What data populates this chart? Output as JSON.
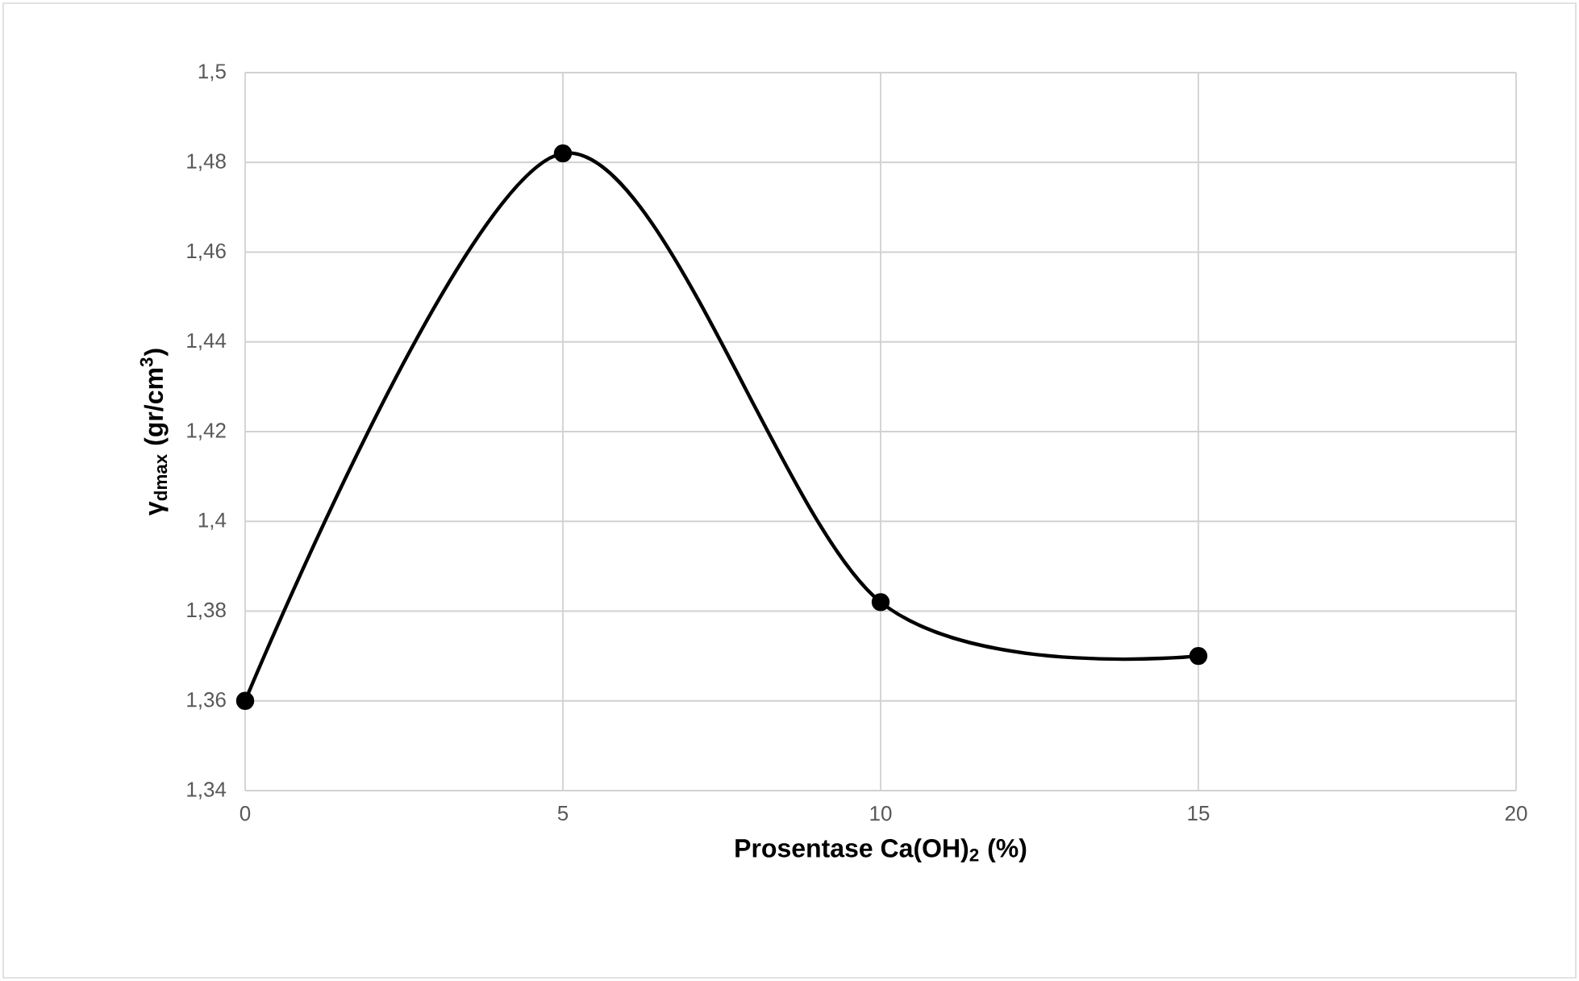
{
  "chart_data": {
    "type": "line",
    "xlabel": "Prosentase Ca(OH)$_{2}$ (%)",
    "ylabel": "γ$_{dmax}$  (gr/cm$^{3}$)",
    "x": [
      0,
      5,
      10,
      15
    ],
    "series": [
      {
        "color": "#000000",
        "values": [
          1.36,
          1.482,
          1.382,
          1.37
        ]
      }
    ],
    "xlim": [
      0,
      20
    ],
    "xticks": [
      0,
      5,
      10,
      15,
      20
    ],
    "ylim": [
      1.34,
      1.5
    ],
    "yticks": [
      {
        "value": 1.34,
        "label": "1,34"
      },
      {
        "value": 1.36,
        "label": "1,36"
      },
      {
        "value": 1.38,
        "label": "1,38"
      },
      {
        "value": 1.4,
        "label": "1,4"
      },
      {
        "value": 1.42,
        "label": "1,42"
      },
      {
        "value": 1.44,
        "label": "1,44"
      },
      {
        "value": 1.46,
        "label": "1,46"
      },
      {
        "value": 1.48,
        "label": "1,48"
      },
      {
        "value": 1.5,
        "label": "1,5"
      }
    ],
    "grid": true,
    "marker": "circle",
    "line_style": "solid"
  }
}
